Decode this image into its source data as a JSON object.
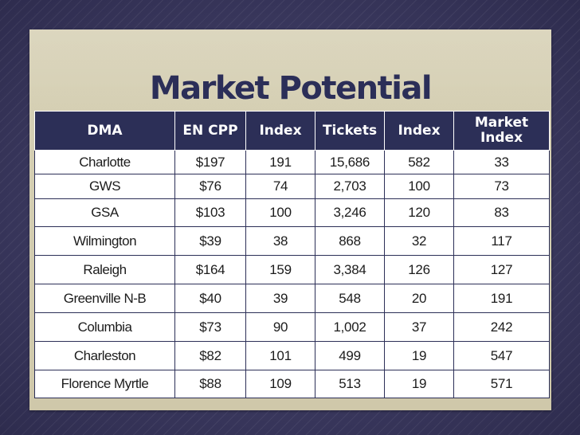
{
  "slide": {
    "title": "Market Potential"
  },
  "table": {
    "headers": [
      "DMA",
      "EN CPP",
      "Index",
      "Tickets",
      "Index",
      "Market Index"
    ],
    "rows": [
      [
        "Charlotte",
        "$197",
        "191",
        "15,686",
        "582",
        "33"
      ],
      [
        "GWS",
        "$76",
        "74",
        "2,703",
        "100",
        "73"
      ],
      [
        "GSA",
        "$103",
        "100",
        "3,246",
        "120",
        "83"
      ],
      [
        "Wilmington",
        "$39",
        "38",
        "868",
        "32",
        "117"
      ],
      [
        "Raleigh",
        "$164",
        "159",
        "3,384",
        "126",
        "127"
      ],
      [
        "Greenville N-B",
        "$40",
        "39",
        "548",
        "20",
        "191"
      ],
      [
        "Columbia",
        "$73",
        "90",
        "1,002",
        "37",
        "242"
      ],
      [
        "Charleston",
        "$82",
        "101",
        "499",
        "19",
        "547"
      ],
      [
        "Florence Myrtle",
        "$88",
        "109",
        "513",
        "19",
        "571"
      ]
    ]
  },
  "colors": {
    "header_bg": "#2c2f57",
    "title": "#2b2e58",
    "panel": "#d3cdb1",
    "background": "#3f3d63"
  }
}
